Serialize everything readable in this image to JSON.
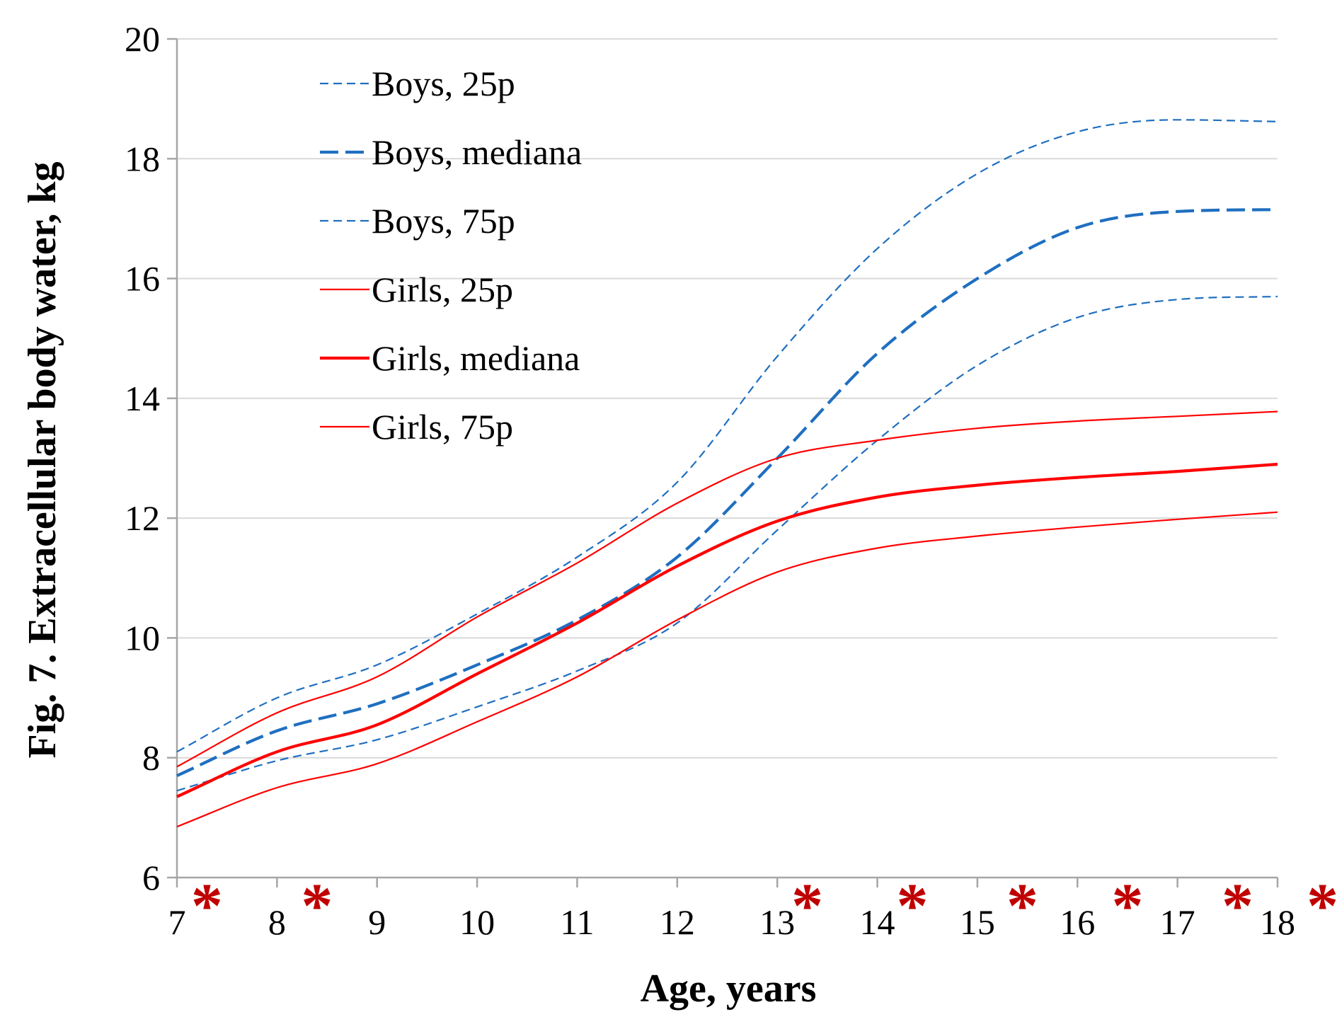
{
  "chart_data": {
    "type": "line",
    "title": "",
    "xlabel": "Age, years",
    "ylabel": "Fig. 7.  Extracellular body water, kg",
    "xlim": [
      7,
      18
    ],
    "ylim": [
      6,
      20
    ],
    "x_ticks": [
      7,
      8,
      9,
      10,
      11,
      12,
      13,
      14,
      15,
      16,
      17,
      18
    ],
    "y_ticks": [
      6,
      8,
      10,
      12,
      14,
      16,
      18,
      20
    ],
    "grid": "horizontal",
    "legend_position": "top-left",
    "colors": {
      "boys": "#1f6fc0",
      "girls": "#ff0000",
      "marker": "#c00000",
      "grid": "#d9d9d9",
      "axis": "#a6a6a6"
    },
    "x": [
      7,
      8,
      9,
      10,
      11,
      12,
      13,
      14,
      15,
      16,
      17,
      18
    ],
    "series": [
      {
        "name": "Boys, 25p",
        "group": "boys",
        "style": "dashed-thin",
        "values": [
          8.1,
          9.0,
          9.55,
          10.4,
          11.35,
          12.6,
          14.7,
          16.5,
          17.75,
          18.45,
          18.65,
          18.62
        ]
      },
      {
        "name": "Boys, mediana",
        "group": "boys",
        "style": "dashed-thick",
        "values": [
          7.7,
          8.45,
          8.9,
          9.55,
          10.3,
          11.35,
          13.0,
          14.75,
          16.0,
          16.85,
          17.12,
          17.15
        ]
      },
      {
        "name": "Boys, 75p",
        "group": "boys",
        "style": "dashed-thin",
        "values": [
          7.45,
          7.95,
          8.3,
          8.85,
          9.45,
          10.25,
          11.8,
          13.3,
          14.55,
          15.35,
          15.65,
          15.7
        ]
      },
      {
        "name": "Girls, 25p",
        "group": "girls",
        "style": "solid-thin",
        "values": [
          7.85,
          8.75,
          9.35,
          10.35,
          11.25,
          12.25,
          13.0,
          13.3,
          13.5,
          13.62,
          13.7,
          13.78
        ]
      },
      {
        "name": "Girls, mediana",
        "group": "girls",
        "style": "solid-thick",
        "values": [
          7.35,
          8.1,
          8.55,
          9.4,
          10.25,
          11.2,
          11.95,
          12.35,
          12.55,
          12.68,
          12.78,
          12.9
        ]
      },
      {
        "name": "Girls, 75p",
        "group": "girls",
        "style": "solid-thin",
        "values": [
          6.85,
          7.5,
          7.9,
          8.6,
          9.35,
          10.3,
          11.1,
          11.5,
          11.7,
          11.85,
          11.98,
          12.1
        ]
      }
    ],
    "significance_markers": {
      "symbol": "*",
      "x": [
        7.3,
        8.4,
        13.3,
        14.35,
        15.45,
        16.5,
        17.6,
        18.45
      ]
    }
  }
}
